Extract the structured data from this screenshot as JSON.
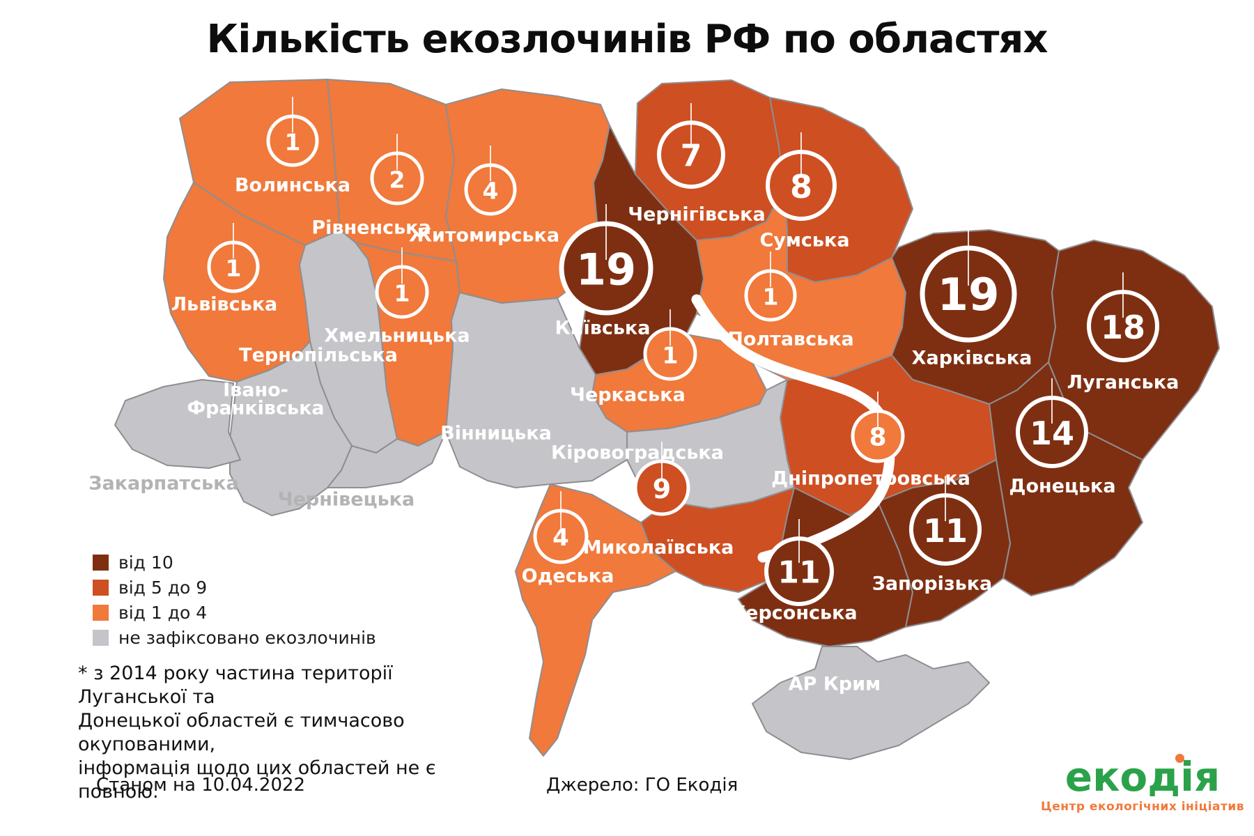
{
  "title": "Кількість екозлочинів РФ по областях",
  "legend": [
    {
      "category": "high",
      "label": "від 10"
    },
    {
      "category": "mid",
      "label": "від 5 до 9"
    },
    {
      "category": "low",
      "label": "від 1 до 4"
    },
    {
      "category": "none",
      "label": "не зафіксовано екозлочинів"
    }
  ],
  "footnote_lines": [
    "* з 2014 року частина території Луганської та",
    "Донецької областей є тимчасово окупованими,",
    "інформація щодо цих областей не є повною."
  ],
  "footer": {
    "as_of": "Станом на 10.04.2022",
    "source": "Джерело: ГО Екодія"
  },
  "logo": {
    "name": "екодія",
    "tagline": "Центр екологічних ініціатив",
    "green": "#2BA24A",
    "orange": "#F0793B"
  },
  "map": {
    "colors": {
      "high": "#7E2F12",
      "mid": "#CE4F22",
      "low": "#F0793B",
      "none": "#C5C4C8",
      "border": "#8E8E92",
      "label": "#FFFFFF",
      "label_muted": "#B3B3B6",
      "badge_ring": "#FFFFFF"
    },
    "regions": [
      {
        "id": "volynska",
        "name": "Волинська",
        "value": 1,
        "category": "low"
      },
      {
        "id": "rivnenska",
        "name": "Рівненська",
        "value": 2,
        "category": "low"
      },
      {
        "id": "zhytomyrska",
        "name": "Житомирська",
        "value": 4,
        "category": "low"
      },
      {
        "id": "kyivska",
        "name": "Київська",
        "value": 19,
        "category": "high"
      },
      {
        "id": "chernihivska",
        "name": "Чернігівська",
        "value": 7,
        "category": "mid"
      },
      {
        "id": "sumska",
        "name": "Сумська",
        "value": 8,
        "category": "mid"
      },
      {
        "id": "poltavska",
        "name": "Полтавська",
        "value": 1,
        "category": "low"
      },
      {
        "id": "kharkivska",
        "name": "Харківська",
        "value": 19,
        "category": "high"
      },
      {
        "id": "luhanska",
        "name": "Луганська",
        "value": 18,
        "category": "high"
      },
      {
        "id": "donetska",
        "name": "Донецька",
        "value": 14,
        "category": "high"
      },
      {
        "id": "dnipropetrovska",
        "name": "Дніпропетровська",
        "value": 8,
        "category": "mid"
      },
      {
        "id": "zaporizka",
        "name": "Запорізька",
        "value": 11,
        "category": "high"
      },
      {
        "id": "khersonska",
        "name": "Херсонська",
        "value": 11,
        "category": "high"
      },
      {
        "id": "mykolaivska",
        "name": "Миколаївська",
        "value": 9,
        "category": "mid"
      },
      {
        "id": "odeska",
        "name": "Одеська",
        "value": 4,
        "category": "low"
      },
      {
        "id": "cherkaska",
        "name": "Черкаська",
        "value": 1,
        "category": "low"
      },
      {
        "id": "lvivska",
        "name": "Львівська",
        "value": 1,
        "category": "low"
      },
      {
        "id": "khmelnytska",
        "name": "Хмельницька",
        "value": 1,
        "category": "low"
      },
      {
        "id": "ternopilska",
        "name": "Тернопільська",
        "value": null,
        "category": "none"
      },
      {
        "id": "ivanofrankivska",
        "name": "Івано-Франківська",
        "value": null,
        "category": "none"
      },
      {
        "id": "zakarpatska",
        "name": "Закарпатська",
        "value": null,
        "category": "none"
      },
      {
        "id": "chernivetska",
        "name": "Чернівецька",
        "value": null,
        "category": "none"
      },
      {
        "id": "vinnytska",
        "name": "Вінницька",
        "value": null,
        "category": "none"
      },
      {
        "id": "kirovohradska",
        "name": "Кіровоградська",
        "value": null,
        "category": "none"
      },
      {
        "id": "krym",
        "name": "АР Крим",
        "value": null,
        "category": "none"
      }
    ]
  }
}
